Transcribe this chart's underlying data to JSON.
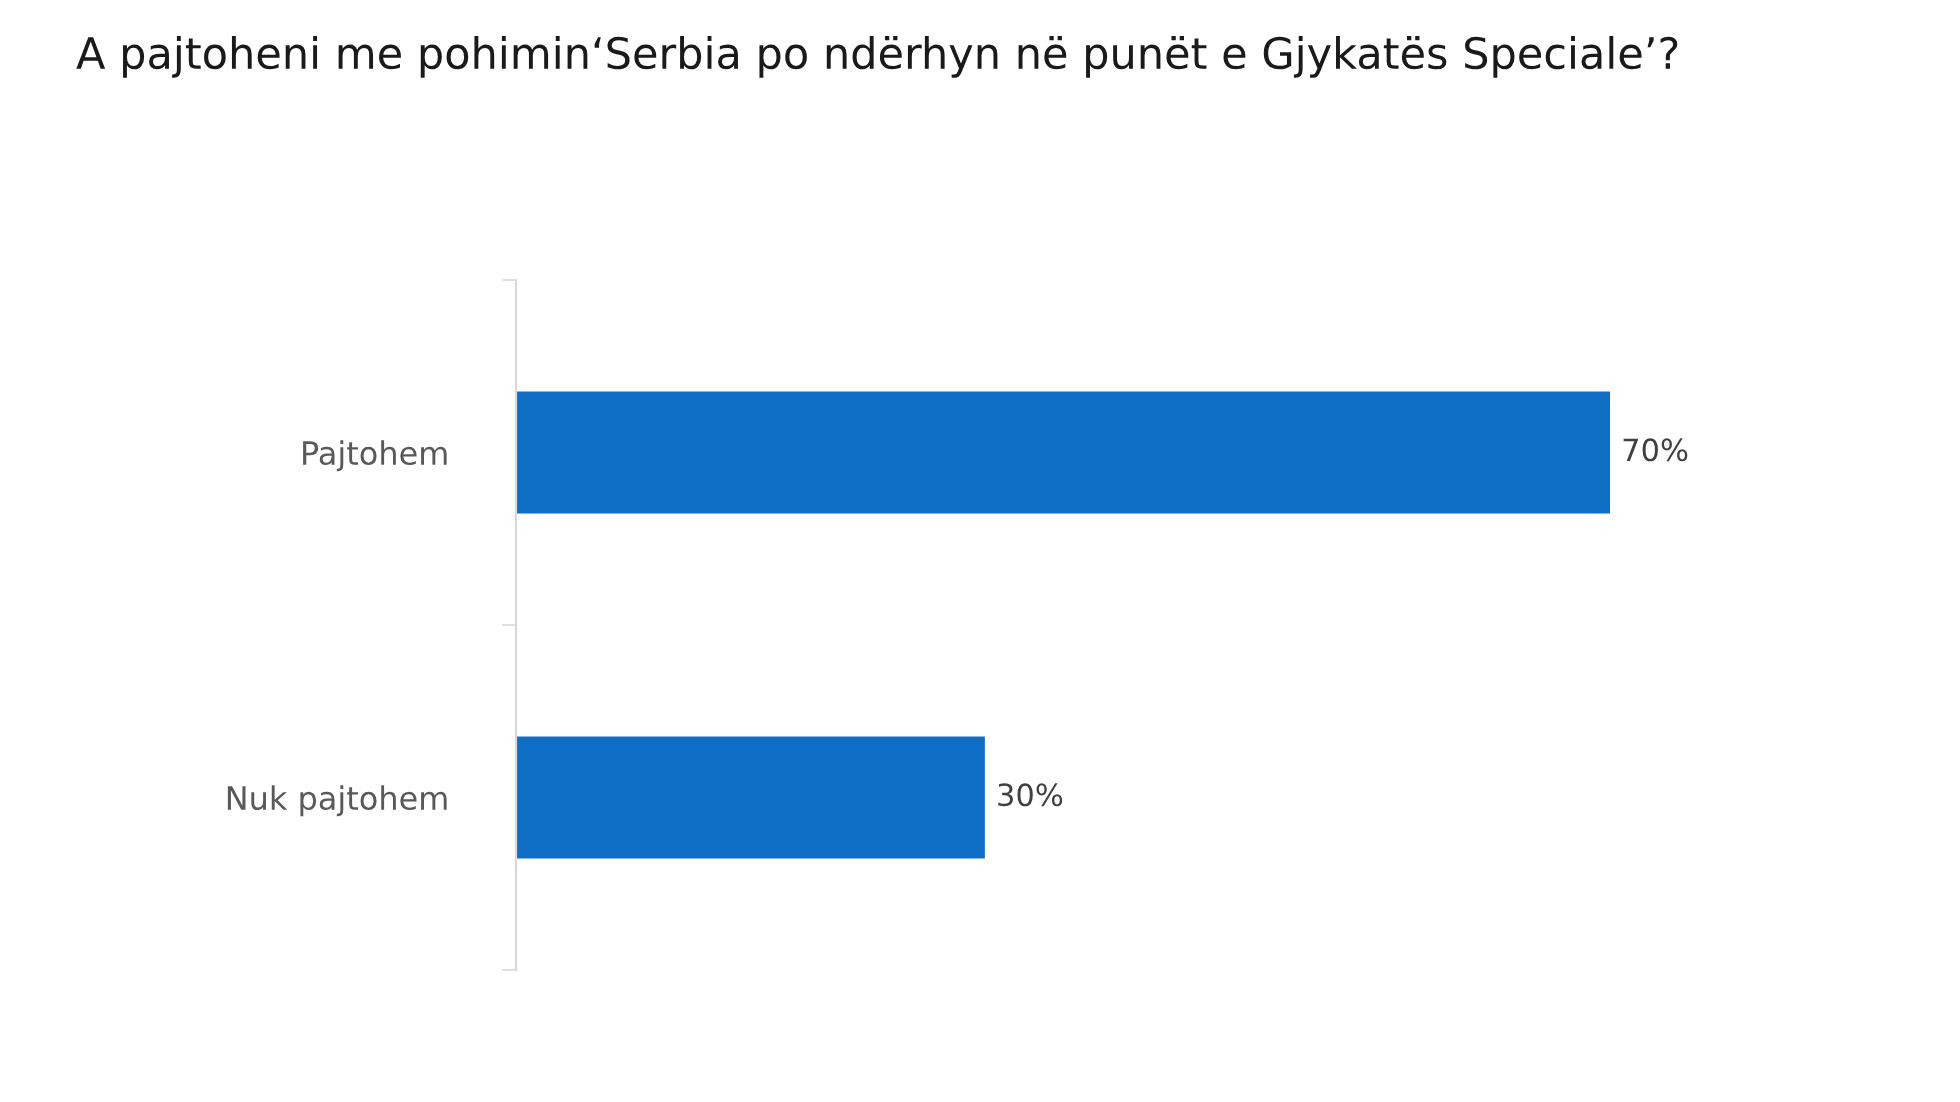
{
  "chart_data": {
    "type": "bar",
    "orientation": "horizontal",
    "title": "A pajtoheni me pohimin‘Serbia po ndërhyn në punët e Gjykatës Speciale’?",
    "categories": [
      "Pajtohem",
      "Nuk pajtohem"
    ],
    "values": [
      70,
      30
    ],
    "value_labels": [
      "70%",
      "30%"
    ],
    "color": "#0f6fc6",
    "grid": false,
    "legend": false
  }
}
